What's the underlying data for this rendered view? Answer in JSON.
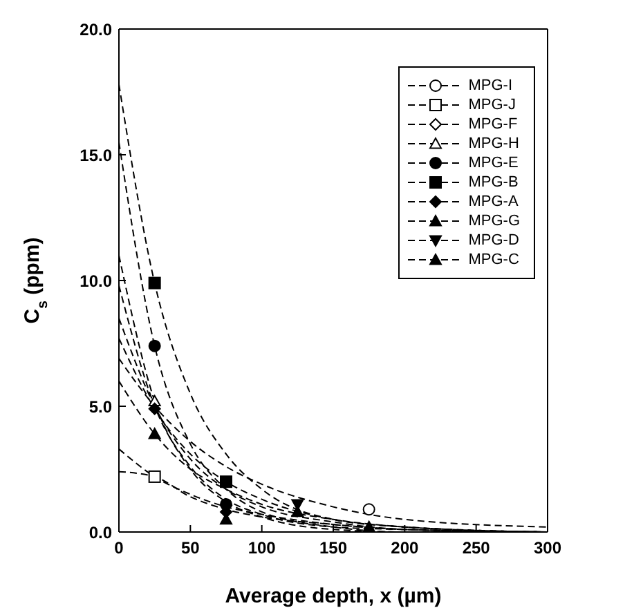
{
  "chart_data": {
    "type": "scatter",
    "xlabel": "Average depth, x (µm)",
    "ylabel": "C$_{s}$ (ppm)",
    "xlim": [
      0,
      300
    ],
    "xticks": [
      0,
      50,
      100,
      150,
      200,
      250,
      300
    ],
    "ylim": [
      0,
      20
    ],
    "yticks": [
      {
        "value": 0,
        "label": "0.0"
      },
      {
        "value": 5,
        "label": "5.0"
      },
      {
        "value": 10,
        "label": "10.0"
      },
      {
        "value": 15,
        "label": "15.0"
      },
      {
        "value": 20,
        "label": "20.0"
      }
    ],
    "grid": false,
    "legend": "top right",
    "line_style": "dashed",
    "series": [
      {
        "name": "MPG-I",
        "marker": "circle-open",
        "color": "#000000",
        "x": [
          175
        ],
        "values": [
          0.9
        ]
      },
      {
        "name": "MPG-J",
        "marker": "square-open",
        "color": "#000000",
        "x": [
          25
        ],
        "values": [
          2.2
        ]
      },
      {
        "name": "MPG-F",
        "marker": "diamond-open",
        "color": "#000000"
      },
      {
        "name": "MPG-H",
        "marker": "triangle-open",
        "color": "#000000",
        "x": [
          25
        ],
        "values": [
          5.2
        ]
      },
      {
        "name": "MPG-E",
        "marker": "circle",
        "color": "#000000",
        "x": [
          25,
          75
        ],
        "values": [
          7.4,
          1.1
        ]
      },
      {
        "name": "MPG-B",
        "marker": "square",
        "color": "#000000",
        "x": [
          25,
          75
        ],
        "values": [
          9.9,
          2.0
        ]
      },
      {
        "name": "MPG-A",
        "marker": "diamond",
        "color": "#000000",
        "x": [
          25,
          75
        ],
        "values": [
          4.9,
          0.8
        ]
      },
      {
        "name": "MPG-G",
        "marker": "triangle",
        "color": "#000000",
        "x": [
          25,
          75
        ],
        "values": [
          3.9,
          0.5
        ]
      },
      {
        "name": "MPG-D",
        "marker": "triangle-down",
        "color": "#000000",
        "x": [
          125
        ],
        "values": [
          1.1
        ]
      },
      {
        "name": "MPG-C",
        "marker": "triangle",
        "color": "#000000",
        "x": [
          125,
          175
        ],
        "values": [
          0.8,
          0.2
        ]
      },
      {
        "type": "line",
        "marker": "none",
        "color": "#000000",
        "x": [
          0,
          25,
          50,
          75,
          100,
          150,
          200,
          300
        ],
        "values": [
          3.3,
          2.2,
          1.5,
          1.0,
          0.7,
          0.3,
          0.1,
          0.0
        ]
      },
      {
        "type": "line",
        "marker": "none",
        "color": "#000000",
        "x": [
          0,
          25,
          50,
          75,
          100,
          150,
          200,
          300
        ],
        "values": [
          2.4,
          2.2,
          1.4,
          0.9,
          0.6,
          0.3,
          0.1,
          0.0
        ]
      },
      {
        "type": "line",
        "marker": "none",
        "color": "#000000",
        "x": [
          0,
          25,
          50,
          75,
          100,
          150,
          200,
          300
        ],
        "values": [
          9.8,
          5.0,
          2.6,
          1.3,
          0.7,
          0.2,
          0.1,
          0.0
        ]
      },
      {
        "type": "line",
        "marker": "none",
        "color": "#000000",
        "x": [
          0,
          25,
          50,
          75,
          100,
          150,
          200,
          300
        ],
        "values": [
          11.0,
          5.2,
          2.5,
          1.2,
          0.6,
          0.1,
          0.0,
          0.0
        ]
      },
      {
        "type": "line",
        "marker": "none",
        "color": "#000000",
        "x": [
          0,
          25,
          50,
          75,
          100,
          150,
          200,
          300
        ],
        "values": [
          15.5,
          7.4,
          3.5,
          1.7,
          0.8,
          0.2,
          0.0,
          0.0
        ]
      },
      {
        "type": "line",
        "marker": "none",
        "color": "#000000",
        "x": [
          0,
          25,
          50,
          75,
          100,
          150,
          200,
          300
        ],
        "values": [
          17.8,
          9.9,
          5.5,
          3.1,
          1.7,
          0.5,
          0.2,
          0.0
        ]
      },
      {
        "type": "line",
        "marker": "none",
        "color": "#000000",
        "x": [
          0,
          25,
          50,
          75,
          100,
          150,
          200,
          300
        ],
        "values": [
          7.7,
          4.9,
          3.1,
          2.0,
          1.3,
          0.5,
          0.2,
          0.0
        ]
      },
      {
        "type": "line",
        "marker": "none",
        "color": "#000000",
        "x": [
          0,
          25,
          50,
          75,
          100,
          150,
          200,
          300
        ],
        "values": [
          6.0,
          3.9,
          2.5,
          1.7,
          1.1,
          0.5,
          0.2,
          0.0
        ]
      },
      {
        "type": "line",
        "marker": "none",
        "color": "#000000",
        "x": [
          0,
          25,
          50,
          75,
          100,
          150,
          200,
          300
        ],
        "values": [
          8.5,
          5.0,
          2.9,
          1.7,
          1.0,
          0.4,
          0.1,
          0.0
        ]
      },
      {
        "type": "line",
        "marker": "none",
        "color": "#000000",
        "x": [
          0,
          25,
          50,
          75,
          100,
          150,
          200,
          300
        ],
        "values": [
          6.9,
          5.0,
          3.6,
          2.6,
          1.9,
          1.0,
          0.5,
          0.2
        ]
      }
    ]
  }
}
